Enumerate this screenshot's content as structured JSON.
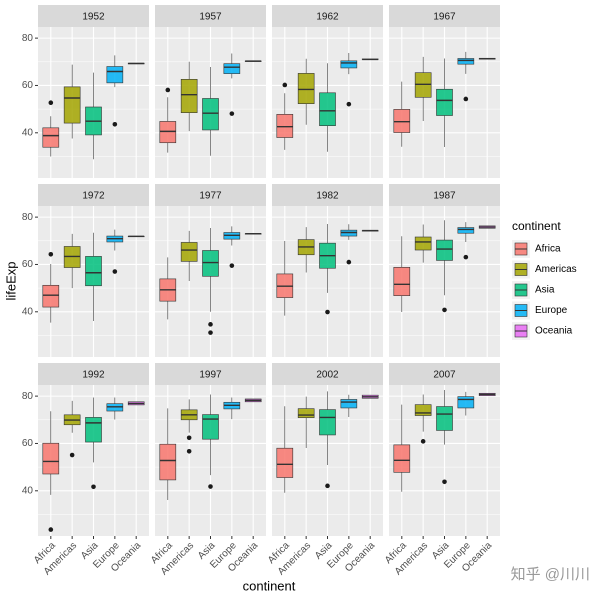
{
  "chart_data": {
    "type": "boxplot",
    "x_label": "continent",
    "y_label": "lifeExp",
    "legend_title": "continent",
    "legend_position": "right",
    "watermark": "知乎 @川川",
    "categories": [
      "Africa",
      "Americas",
      "Asia",
      "Europe",
      "Oceania"
    ],
    "colors": [
      "#F8766D",
      "#A3A500",
      "#00BF7D",
      "#00B0F6",
      "#E76BF3"
    ],
    "ylim": [
      20.9,
      84.7
    ],
    "yticks": [
      40,
      60,
      80
    ],
    "minor_yticks": [
      30,
      50,
      70
    ],
    "grid": true,
    "facets": [
      {
        "title": "1952",
        "boxes": [
          [
            30,
            33.9,
            38.8,
            42.1,
            47
          ],
          [
            37.6,
            44.1,
            54.7,
            59.4,
            68.8
          ],
          [
            28.8,
            39.1,
            44.9,
            50.9,
            65.4
          ],
          [
            59.3,
            61.1,
            65.9,
            68,
            72.7
          ],
          [
            69.1,
            69.1,
            69.3,
            69.4,
            69.4
          ]
        ],
        "outliers": [
          [
            52.7
          ],
          [],
          [],
          [
            43.6
          ],
          []
        ]
      },
      {
        "title": "1957",
        "boxes": [
          [
            31.6,
            35.8,
            40.6,
            44.8,
            55
          ],
          [
            40.7,
            48.5,
            56.1,
            62.6,
            70
          ],
          [
            30.3,
            41.2,
            48.3,
            54.5,
            67.8
          ],
          [
            63,
            65,
            67.7,
            69.2,
            73.5
          ],
          [
            70.3,
            70.3,
            70.3,
            70.3,
            70.3
          ]
        ],
        "outliers": [
          [
            58.1
          ],
          [],
          [],
          [
            48.1
          ],
          []
        ]
      },
      {
        "title": "1962",
        "boxes": [
          [
            32.8,
            38,
            42.6,
            47.8,
            56.7
          ],
          [
            43.4,
            52.3,
            58.3,
            65.1,
            71.3
          ],
          [
            32,
            43,
            49.3,
            56.9,
            69.4
          ],
          [
            64.8,
            67.4,
            69.5,
            70.4,
            73.7
          ],
          [
            71,
            71,
            71,
            71.2,
            71.2
          ]
        ],
        "outliers": [
          [
            60.2
          ],
          [],
          [],
          [
            52.1
          ],
          []
        ]
      },
      {
        "title": "1967",
        "boxes": [
          [
            34.1,
            40.1,
            44.7,
            49.9,
            61.6
          ],
          [
            45,
            55,
            60.5,
            65.4,
            72.1
          ],
          [
            34,
            47.3,
            53.7,
            58.4,
            71.4
          ],
          [
            64.9,
            69,
            70.6,
            71.4,
            74.2
          ],
          [
            71.1,
            71.1,
            71.3,
            71.5,
            71.5
          ]
        ],
        "outliers": [
          [],
          [],
          [],
          [
            54.3
          ],
          []
        ]
      },
      {
        "title": "1972",
        "boxes": [
          [
            35.4,
            42,
            47,
            51.2,
            60.2
          ],
          [
            50,
            58.7,
            63.4,
            67.6,
            72.9
          ],
          [
            36.1,
            51,
            56.5,
            63.4,
            73.4
          ],
          [
            65.9,
            69.5,
            70.9,
            72,
            74.7
          ],
          [
            71.9,
            71.9,
            71.9,
            71.9,
            71.9
          ]
        ],
        "outliers": [
          [
            64.3
          ],
          [],
          [],
          [
            57
          ],
          []
        ]
      },
      {
        "title": "1977",
        "boxes": [
          [
            36.8,
            44.5,
            49.3,
            53.9,
            63
          ],
          [
            53,
            61.3,
            66.1,
            69.3,
            74.2
          ],
          [
            40,
            55,
            60.8,
            65.9,
            75.4
          ],
          [
            68,
            70.7,
            72.3,
            73.5,
            76.1
          ],
          [
            72.9,
            72.9,
            73,
            73,
            73
          ]
        ],
        "outliers": [
          [],
          [],
          [
            31.2,
            34.7
          ],
          [
            59.5
          ],
          []
        ]
      },
      {
        "title": "1982",
        "boxes": [
          [
            38.4,
            46,
            50.8,
            56,
            69.9
          ],
          [
            56.6,
            64.1,
            67.4,
            70.5,
            75.8
          ],
          [
            48,
            58.4,
            63.7,
            69,
            77.1
          ],
          [
            70.4,
            72,
            73.5,
            74.5,
            77
          ],
          [
            74.3,
            74.3,
            74.3,
            74.3,
            74.3
          ]
        ],
        "outliers": [
          [],
          [],
          [
            39.9
          ],
          [
            61
          ],
          []
        ]
      },
      {
        "title": "1987",
        "boxes": [
          [
            39.9,
            46.8,
            51.6,
            58.8,
            71.9
          ],
          [
            60.8,
            66.1,
            69.5,
            71.6,
            76.9
          ],
          [
            47,
            61.7,
            66.5,
            70.3,
            78.7
          ],
          [
            69.5,
            73.2,
            74.8,
            75.6,
            77.9
          ],
          [
            75.3,
            75.3,
            75.8,
            76.3,
            76.3
          ]
        ],
        "outliers": [
          [],
          [],
          [
            40.8
          ],
          [
            63.1
          ],
          []
        ]
      },
      {
        "title": "1992",
        "boxes": [
          [
            38.3,
            47.1,
            52.4,
            60.1,
            73.6
          ],
          [
            64.5,
            67.9,
            69.9,
            72.1,
            78
          ],
          [
            52,
            60.6,
            68.7,
            71,
            79.4
          ],
          [
            70.1,
            73.7,
            75.5,
            76.8,
            79.4
          ],
          [
            76.3,
            76.3,
            76.9,
            77.6,
            77.6
          ]
        ],
        "outliers": [
          [
            23.6
          ],
          [
            55.1
          ],
          [
            41.7
          ],
          [],
          []
        ]
      },
      {
        "title": "1997",
        "boxes": [
          [
            36.1,
            44.6,
            52.8,
            59.7,
            74.8
          ],
          [
            64.6,
            70,
            72.1,
            74.2,
            78.6
          ],
          [
            46.6,
            61.8,
            70.3,
            72.2,
            80.7
          ],
          [
            70.3,
            74.6,
            76.1,
            77.4,
            79.4
          ],
          [
            77.6,
            77.6,
            78.2,
            78.8,
            78.8
          ]
        ],
        "outliers": [
          [],
          [
            56.7,
            62.4
          ],
          [
            41.8
          ],
          [],
          []
        ]
      },
      {
        "title": "2002",
        "boxes": [
          [
            39.2,
            45.6,
            51.2,
            58,
            75.7
          ],
          [
            58.1,
            70.9,
            72,
            74.7,
            79.8
          ],
          [
            50.9,
            63.6,
            71,
            74.3,
            82
          ],
          [
            71.2,
            75,
            77.5,
            78.6,
            80.6
          ],
          [
            79.1,
            79.1,
            79.7,
            80.4,
            80.4
          ]
        ],
        "outliers": [
          [],
          [],
          [
            42.1
          ],
          [],
          []
        ]
      },
      {
        "title": "2007",
        "boxes": [
          [
            39.6,
            47.8,
            52.9,
            59.4,
            76.4
          ],
          [
            65,
            71.8,
            72.9,
            76.4,
            80.7
          ],
          [
            59.5,
            65.5,
            72.4,
            75.6,
            82.6
          ],
          [
            71.8,
            75,
            78.6,
            79.8,
            81.8
          ],
          [
            80.2,
            80.2,
            80.7,
            81.2,
            81.2
          ]
        ],
        "outliers": [
          [],
          [
            60.9
          ],
          [
            43.8
          ],
          [],
          []
        ]
      }
    ]
  }
}
